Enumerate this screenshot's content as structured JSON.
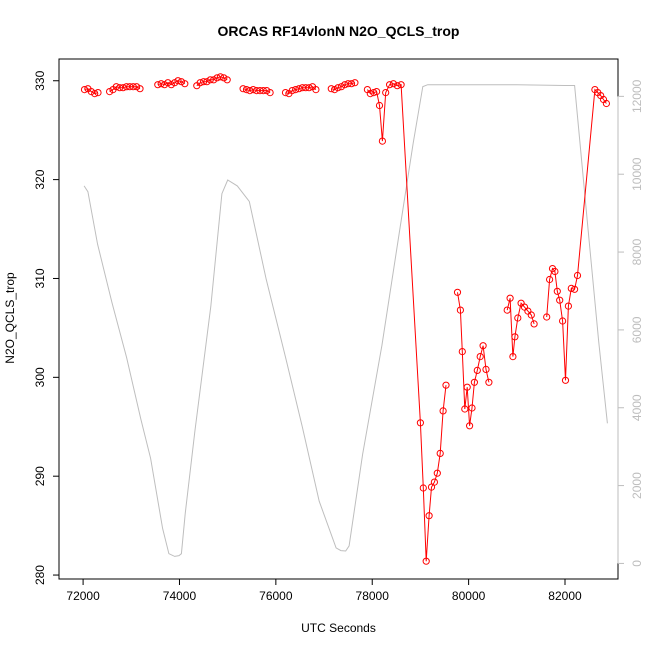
{
  "chart_data": {
    "type": "line",
    "title": "ORCAS RF14vlonN N2O_QCLS_trop",
    "xlabel": "UTC Seconds",
    "ylabel": "N2O_QCLS_trop",
    "xlim": [
      71500,
      83100
    ],
    "ylim": [
      279.6,
      332.2
    ],
    "y2lim": [
      -400,
      12960
    ],
    "x_ticks": [
      72000,
      74000,
      76000,
      78000,
      80000,
      82000
    ],
    "y_ticks": [
      280,
      290,
      300,
      310,
      320,
      330
    ],
    "y2_ticks": [
      0,
      2000,
      4000,
      6000,
      8000,
      10000,
      12000
    ],
    "grid": false,
    "colors": {
      "series": "#ff0000",
      "altitude": "#bebebe"
    },
    "series": [
      {
        "marker": "open-circle",
        "segments": [
          [
            [
              72030,
              329.1
            ],
            [
              72100,
              329.2
            ],
            [
              72170,
              328.9
            ],
            [
              72240,
              328.7
            ],
            [
              72310,
              328.8
            ]
          ],
          [
            [
              72550,
              328.9
            ],
            [
              72620,
              329.1
            ],
            [
              72690,
              329.4
            ],
            [
              72760,
              329.3
            ],
            [
              72830,
              329.3
            ],
            [
              72900,
              329.4
            ],
            [
              72970,
              329.4
            ],
            [
              73040,
              329.4
            ],
            [
              73110,
              329.4
            ],
            [
              73180,
              329.2
            ]
          ],
          [
            [
              73550,
              329.6
            ],
            [
              73620,
              329.7
            ],
            [
              73690,
              329.6
            ],
            [
              73760,
              329.8
            ],
            [
              73830,
              329.6
            ],
            [
              73900,
              329.8
            ],
            [
              73970,
              330.0
            ],
            [
              74040,
              329.9
            ],
            [
              74110,
              329.7
            ]
          ],
          [
            [
              74360,
              329.5
            ],
            [
              74430,
              329.8
            ],
            [
              74500,
              329.9
            ],
            [
              74570,
              329.9
            ],
            [
              74640,
              330.1
            ],
            [
              74710,
              330.1
            ],
            [
              74780,
              330.3
            ],
            [
              74850,
              330.4
            ],
            [
              74920,
              330.3
            ],
            [
              74990,
              330.1
            ]
          ],
          [
            [
              75320,
              329.2
            ],
            [
              75390,
              329.1
            ],
            [
              75460,
              329.0
            ],
            [
              75530,
              329.1
            ],
            [
              75600,
              329.0
            ],
            [
              75670,
              329.0
            ],
            [
              75740,
              329.0
            ],
            [
              75810,
              329.0
            ],
            [
              75880,
              328.8
            ]
          ],
          [
            [
              76200,
              328.8
            ],
            [
              76270,
              328.7
            ],
            [
              76340,
              329.0
            ],
            [
              76410,
              329.1
            ],
            [
              76480,
              329.2
            ],
            [
              76550,
              329.3
            ],
            [
              76620,
              329.3
            ],
            [
              76690,
              329.3
            ],
            [
              76760,
              329.4
            ],
            [
              76830,
              329.1
            ]
          ],
          [
            [
              77150,
              329.2
            ],
            [
              77220,
              329.1
            ],
            [
              77290,
              329.3
            ],
            [
              77360,
              329.4
            ],
            [
              77430,
              329.6
            ],
            [
              77500,
              329.7
            ],
            [
              77570,
              329.7
            ],
            [
              77640,
              329.8
            ]
          ],
          [
            [
              77900,
              329.1
            ],
            [
              77960,
              328.7
            ],
            [
              78030,
              328.8
            ],
            [
              78090,
              328.9
            ],
            [
              78150,
              327.5
            ],
            [
              78210,
              323.9
            ],
            [
              78280,
              328.8
            ],
            [
              78360,
              329.6
            ],
            [
              78440,
              329.7
            ],
            [
              78520,
              329.5
            ],
            [
              78600,
              329.6
            ],
            [
              79000,
              295.4
            ],
            [
              79060,
              288.8
            ],
            [
              79120,
              281.4
            ],
            [
              79180,
              286.0
            ],
            [
              79230,
              288.9
            ],
            [
              79290,
              289.4
            ],
            [
              79350,
              290.3
            ],
            [
              79410,
              292.3
            ],
            [
              79470,
              296.6
            ],
            [
              79530,
              299.2
            ]
          ],
          [
            [
              79770,
              308.6
            ],
            [
              79830,
              306.8
            ],
            [
              79870,
              302.6
            ],
            [
              79920,
              296.8
            ],
            [
              79970,
              299.0
            ],
            [
              80020,
              295.1
            ],
            [
              80070,
              296.9
            ],
            [
              80120,
              299.5
            ],
            [
              80180,
              300.7
            ],
            [
              80240,
              302.1
            ],
            [
              80300,
              303.2
            ],
            [
              80360,
              300.8
            ],
            [
              80420,
              299.5
            ]
          ],
          [
            [
              80800,
              306.8
            ],
            [
              80860,
              308.0
            ],
            [
              80920,
              302.1
            ],
            [
              80960,
              304.1
            ],
            [
              81020,
              306.0
            ],
            [
              81090,
              307.5
            ],
            [
              81160,
              307.1
            ],
            [
              81230,
              306.7
            ],
            [
              81300,
              306.3
            ],
            [
              81360,
              305.4
            ]
          ],
          [
            [
              81620,
              306.1
            ],
            [
              81680,
              309.9
            ],
            [
              81740,
              311.0
            ],
            [
              81790,
              310.7
            ],
            [
              81840,
              308.7
            ],
            [
              81890,
              307.8
            ],
            [
              81950,
              305.7
            ],
            [
              82010,
              299.7
            ],
            [
              82070,
              307.2
            ],
            [
              82130,
              309.0
            ],
            [
              82200,
              308.9
            ],
            [
              82260,
              310.3
            ],
            [
              82620,
              329.1
            ],
            [
              82680,
              328.8
            ],
            [
              82740,
              328.5
            ],
            [
              82800,
              328.1
            ],
            [
              82860,
              327.7
            ]
          ]
        ]
      },
      {
        "axis": "right",
        "values": [
          [
            72020,
            9700
          ],
          [
            72100,
            9550
          ],
          [
            72300,
            8200
          ],
          [
            72600,
            6700
          ],
          [
            72900,
            5300
          ],
          [
            73200,
            3700
          ],
          [
            73400,
            2700
          ],
          [
            73650,
            900
          ],
          [
            73780,
            250
          ],
          [
            73900,
            180
          ],
          [
            73990,
            200
          ],
          [
            74040,
            250
          ],
          [
            74120,
            1300
          ],
          [
            74320,
            3400
          ],
          [
            74650,
            6600
          ],
          [
            74880,
            9500
          ],
          [
            75000,
            9850
          ],
          [
            75200,
            9700
          ],
          [
            75450,
            9300
          ],
          [
            75800,
            7300
          ],
          [
            76200,
            5300
          ],
          [
            76550,
            3500
          ],
          [
            76900,
            1600
          ],
          [
            77250,
            400
          ],
          [
            77350,
            330
          ],
          [
            77450,
            320
          ],
          [
            77520,
            450
          ],
          [
            77800,
            2800
          ],
          [
            78200,
            5600
          ],
          [
            78550,
            8400
          ],
          [
            78850,
            10800
          ],
          [
            79050,
            12250
          ],
          [
            79150,
            12300
          ],
          [
            80000,
            12300
          ],
          [
            81000,
            12300
          ],
          [
            82000,
            12280
          ],
          [
            82200,
            12280
          ],
          [
            82500,
            8300
          ],
          [
            82700,
            5700
          ],
          [
            82880,
            3600
          ]
        ]
      }
    ]
  }
}
